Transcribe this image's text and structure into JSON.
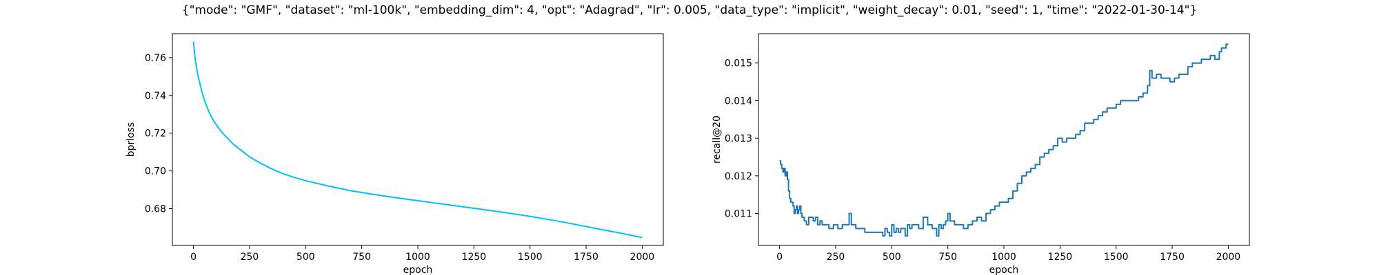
{
  "suptitle": "{\"mode\": \"GMF\", \"dataset\": \"ml-100k\", \"embedding_dim\": 4, \"opt\": \"Adagrad\", \"lr\": 0.005, \"data_type\": \"implicit\", \"weight_decay\": 0.01, \"seed\": 1, \"time\": \"2022-01-30-14\"}",
  "chart_data": [
    {
      "type": "line",
      "title": "",
      "xlabel": "epoch",
      "ylabel": "bprloss",
      "xlim": [
        -94,
        2094
      ],
      "ylim": [
        0.6605,
        0.7727
      ],
      "xticks": [
        0,
        250,
        500,
        750,
        1000,
        1250,
        1500,
        1750,
        2000
      ],
      "yticks": [
        0.68,
        0.7,
        0.72,
        0.74,
        0.76
      ],
      "ytick_labels": [
        "0.68",
        "0.70",
        "0.72",
        "0.74",
        "0.76"
      ],
      "grid": false,
      "line_color": "#00bfff",
      "series": [
        {
          "x": [
            0,
            5,
            10,
            20,
            30,
            40,
            50,
            70,
            90,
            110,
            130,
            150,
            175,
            200,
            250,
            300,
            350,
            400,
            450,
            500,
            600,
            700,
            800,
            900,
            1000,
            1100,
            1200,
            1300,
            1400,
            1500,
            1600,
            1700,
            1800,
            1900,
            2000
          ],
          "values": [
            0.7685,
            0.762,
            0.7575,
            0.7505,
            0.7455,
            0.741,
            0.737,
            0.731,
            0.7265,
            0.723,
            0.72,
            0.7175,
            0.7145,
            0.712,
            0.7075,
            0.704,
            0.701,
            0.6985,
            0.6965,
            0.6948,
            0.692,
            0.6895,
            0.6876,
            0.6858,
            0.6842,
            0.6826,
            0.681,
            0.6794,
            0.6777,
            0.6759,
            0.6739,
            0.6717,
            0.6694,
            0.6671,
            0.6647
          ]
        }
      ]
    },
    {
      "type": "line",
      "title": "",
      "xlabel": "epoch",
      "ylabel": "recall@20",
      "xlim": [
        -94,
        2094
      ],
      "ylim": [
        0.01015,
        0.01578
      ],
      "xticks": [
        0,
        250,
        500,
        750,
        1000,
        1250,
        1500,
        1750,
        2000
      ],
      "yticks": [
        0.011,
        0.012,
        0.013,
        0.014,
        0.015
      ],
      "ytick_labels": [
        "0.011",
        "0.012",
        "0.013",
        "0.014",
        "0.015"
      ],
      "grid": false,
      "line_color": "#1f77b4",
      "series": [
        {
          "x": [
            0,
            5,
            10,
            15,
            20,
            25,
            30,
            35,
            40,
            45,
            50,
            55,
            60,
            65,
            70,
            75,
            80,
            85,
            90,
            95,
            100,
            110,
            120,
            130,
            140,
            150,
            160,
            170,
            180,
            190,
            200,
            220,
            240,
            260,
            280,
            300,
            310,
            320,
            340,
            360,
            380,
            400,
            420,
            440,
            450,
            460,
            470,
            480,
            490,
            500,
            510,
            520,
            530,
            540,
            550,
            560,
            570,
            580,
            590,
            600,
            620,
            640,
            660,
            680,
            700,
            710,
            720,
            730,
            740,
            750,
            760,
            780,
            800,
            820,
            840,
            860,
            880,
            900,
            920,
            940,
            960,
            980,
            1000,
            1020,
            1040,
            1060,
            1080,
            1100,
            1120,
            1140,
            1160,
            1180,
            1200,
            1220,
            1240,
            1260,
            1280,
            1300,
            1320,
            1340,
            1360,
            1380,
            1400,
            1420,
            1440,
            1460,
            1480,
            1500,
            1520,
            1540,
            1560,
            1580,
            1600,
            1620,
            1640,
            1650,
            1660,
            1680,
            1700,
            1720,
            1740,
            1760,
            1780,
            1800,
            1820,
            1840,
            1860,
            1880,
            1900,
            1920,
            1940,
            1960,
            1970,
            1980,
            1990,
            2000
          ],
          "values": [
            0.0124,
            0.0123,
            0.0122,
            0.0121,
            0.0122,
            0.012,
            0.0121,
            0.0119,
            0.0116,
            0.0114,
            0.0113,
            0.0113,
            0.0112,
            0.011,
            0.0111,
            0.0112,
            0.011,
            0.0111,
            0.0112,
            0.011,
            0.0109,
            0.0108,
            0.0107,
            0.0109,
            0.0109,
            0.0108,
            0.0109,
            0.0107,
            0.0108,
            0.0107,
            0.0107,
            0.0106,
            0.0107,
            0.0106,
            0.0107,
            0.0107,
            0.011,
            0.0107,
            0.0106,
            0.0106,
            0.0105,
            0.0105,
            0.0105,
            0.0105,
            0.0105,
            0.0104,
            0.0106,
            0.0105,
            0.0104,
            0.0107,
            0.0105,
            0.0106,
            0.0105,
            0.0106,
            0.0106,
            0.0104,
            0.0107,
            0.0106,
            0.0107,
            0.0107,
            0.0106,
            0.0109,
            0.0107,
            0.0106,
            0.0104,
            0.0107,
            0.0106,
            0.0107,
            0.0108,
            0.011,
            0.0108,
            0.0107,
            0.0107,
            0.0106,
            0.0107,
            0.0108,
            0.0109,
            0.0108,
            0.011,
            0.0111,
            0.0112,
            0.0113,
            0.0113,
            0.0114,
            0.0116,
            0.0118,
            0.012,
            0.0121,
            0.0122,
            0.0123,
            0.0125,
            0.0126,
            0.0127,
            0.0128,
            0.013,
            0.0129,
            0.013,
            0.013,
            0.0131,
            0.0132,
            0.0134,
            0.0134,
            0.0135,
            0.0136,
            0.0137,
            0.0138,
            0.0138,
            0.0139,
            0.014,
            0.014,
            0.014,
            0.014,
            0.0141,
            0.0142,
            0.0144,
            0.0148,
            0.0146,
            0.0147,
            0.0146,
            0.0146,
            0.0145,
            0.0146,
            0.0147,
            0.0147,
            0.0149,
            0.015,
            0.015,
            0.0151,
            0.0151,
            0.0152,
            0.0151,
            0.0153,
            0.0154,
            0.0154,
            0.0155,
            0.0155
          ]
        }
      ]
    }
  ]
}
